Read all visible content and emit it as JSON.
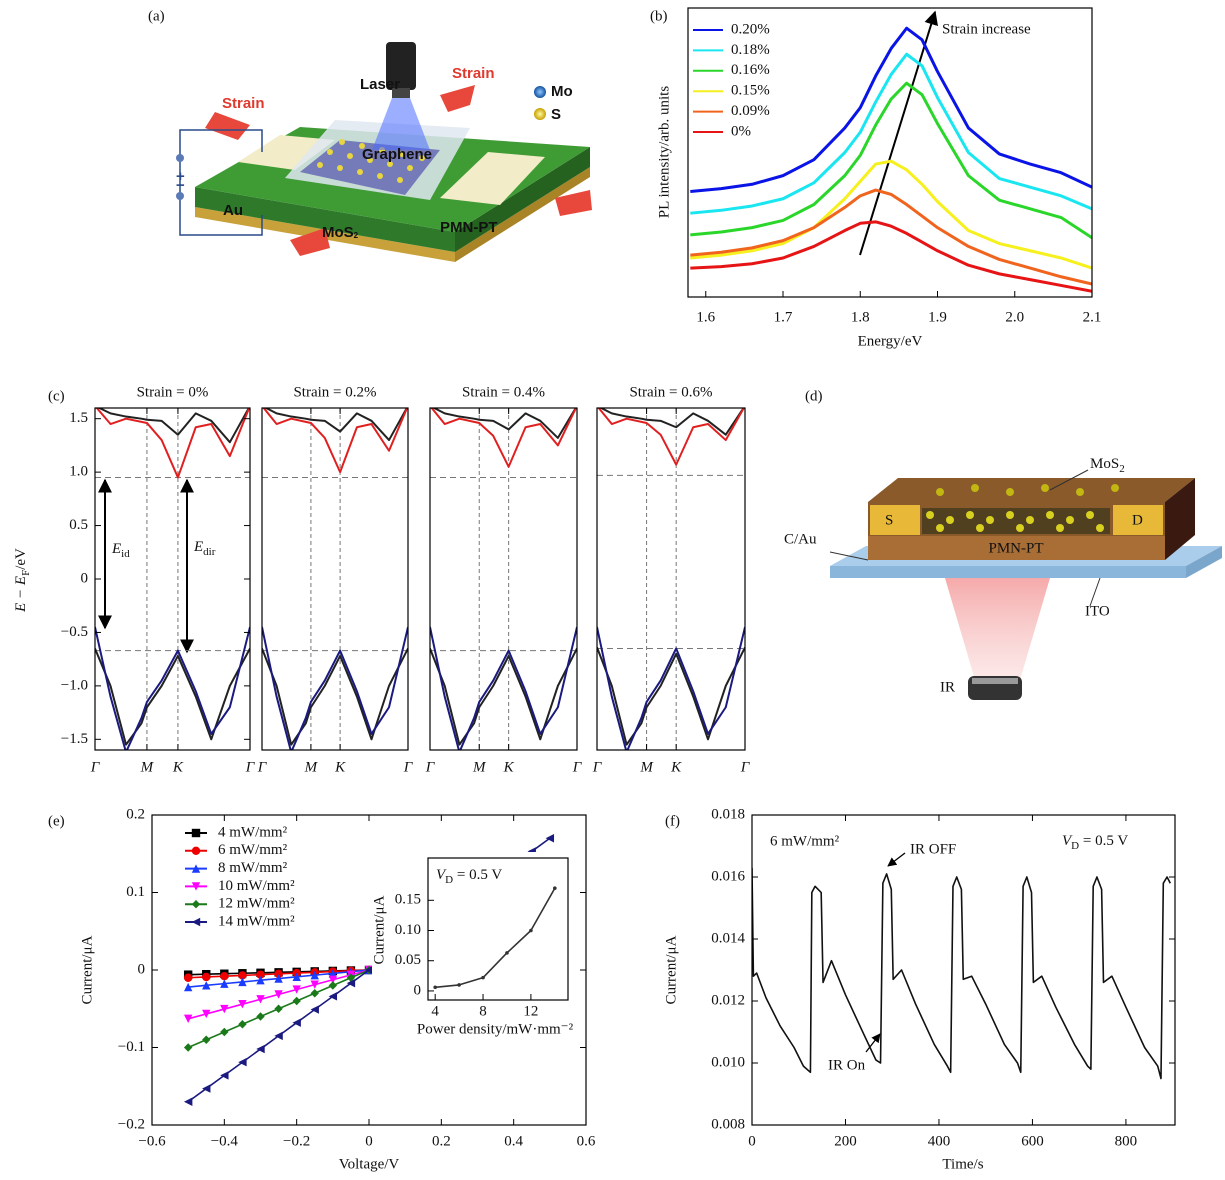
{
  "panel_labels": [
    "(a)",
    "(b)",
    "(c)",
    "(d)",
    "(e)",
    "(f)"
  ],
  "diagram_a": {
    "laser": "Laser",
    "strain_left": "Strain",
    "strain_right": "Strain",
    "legend": [
      "Mo",
      "S"
    ],
    "graphene": "Graphene",
    "electrode": "Au",
    "channel": {
      "text": "MoS",
      "sub": "2"
    },
    "substrate": "PMN-PT",
    "plus": "+",
    "minus": "−"
  },
  "diagram_d": {
    "channel": {
      "text": "MoS",
      "sub": "2"
    },
    "source": "S",
    "drain": "D",
    "bottom_electrode": "C/Au",
    "substrate": "PMN-PT",
    "top_layer": "ITO",
    "light": "IR"
  },
  "chart_data": [
    {
      "type": "line",
      "xlabel": "Energy/eV",
      "ylabel": "PL intensity/arb. units",
      "annotation": "Strain increase",
      "legend": "upper left",
      "mirror": false,
      "xlim": [
        1.577,
        2.1
      ],
      "ylim": [
        0,
        10
      ],
      "xticks": [
        1.6,
        1.7,
        1.8,
        1.9,
        {
          "value": 2.0,
          "label": "2.0"
        },
        2.1
      ],
      "x": [
        1.58,
        1.62,
        1.66,
        1.7,
        1.74,
        1.78,
        1.8,
        1.82,
        1.84,
        1.86,
        1.88,
        1.9,
        1.94,
        1.98,
        2.02,
        2.06,
        2.1
      ],
      "series": [
        {
          "name": "0.20%",
          "color": "#0a14e6",
          "values": [
            3.65,
            3.75,
            3.9,
            4.2,
            4.75,
            5.85,
            6.55,
            7.65,
            8.6,
            9.3,
            8.9,
            7.8,
            5.85,
            4.95,
            4.6,
            4.3,
            3.8
          ]
        },
        {
          "name": "0.18%",
          "color": "#19e6f0",
          "values": [
            2.9,
            3.0,
            3.15,
            3.4,
            3.95,
            5.0,
            5.7,
            6.75,
            7.7,
            8.4,
            8.0,
            6.9,
            5.0,
            4.1,
            3.8,
            3.5,
            3.05
          ]
        },
        {
          "name": "0.16%",
          "color": "#2bd62b",
          "values": [
            2.15,
            2.25,
            2.4,
            2.65,
            3.2,
            4.2,
            4.9,
            5.95,
            6.85,
            7.4,
            7.0,
            6.0,
            4.2,
            3.35,
            3.05,
            2.75,
            2.05
          ]
        },
        {
          "name": "0.15%",
          "color": "#f5f01e",
          "values": [
            1.35,
            1.45,
            1.6,
            1.85,
            2.4,
            3.4,
            4.0,
            4.6,
            4.7,
            4.4,
            3.9,
            3.3,
            2.3,
            1.85,
            1.6,
            1.35,
            1.0
          ]
        },
        {
          "name": "0.09%",
          "color": "#f0641e",
          "values": [
            1.45,
            1.55,
            1.7,
            1.95,
            2.4,
            3.1,
            3.5,
            3.7,
            3.55,
            3.2,
            2.8,
            2.4,
            1.75,
            1.3,
            1.0,
            0.7,
            0.45
          ]
        },
        {
          "name": "0%",
          "color": "#e61414",
          "values": [
            1.0,
            1.05,
            1.15,
            1.35,
            1.75,
            2.3,
            2.55,
            2.6,
            2.45,
            2.2,
            1.9,
            1.6,
            1.1,
            0.8,
            0.6,
            0.4,
            0.2
          ]
        }
      ]
    },
    {
      "type": "line",
      "title": "Strain = 0%",
      "ylabel": {
        "text": "E − E",
        "sub": "F",
        "rest": "/eV"
      },
      "xgrid": true,
      "mirror": true,
      "annotations": [
        {
          "text": "E",
          "sub": "id"
        },
        {
          "text": "E",
          "sub": "dir"
        }
      ],
      "xlim": [
        0,
        1
      ],
      "ylim": [
        -1.6,
        1.6
      ],
      "xticks": [
        {
          "value": 0,
          "label": "Γ"
        },
        {
          "value": 0.335,
          "label": "M"
        },
        {
          "value": 0.535,
          "label": "K"
        },
        {
          "value": 1,
          "label": "Γ"
        }
      ],
      "yticks": [
        {
          "value": -1.5,
          "label": "−1.5"
        },
        {
          "value": -1.0,
          "label": "−1.0"
        },
        {
          "value": -0.5,
          "label": "−0.5"
        },
        0,
        0.5,
        {
          "value": 1.0,
          "label": "1.0"
        },
        1.5
      ],
      "hlines": [
        0.95,
        -0.67
      ],
      "x": [
        0,
        0.1,
        0.2,
        0.3,
        0.335,
        0.43,
        0.535,
        0.65,
        0.75,
        0.87,
        1.0
      ],
      "series": [
        {
          "color": "#222222",
          "values": [
            1.62,
            1.55,
            1.52,
            1.5,
            1.49,
            1.48,
            1.35,
            1.55,
            1.48,
            1.28,
            1.62
          ]
        },
        {
          "color": "#e02020",
          "values": [
            1.62,
            1.45,
            1.5,
            1.47,
            1.46,
            1.3,
            0.95,
            1.42,
            1.45,
            1.15,
            1.62
          ]
        },
        {
          "color": "#222222",
          "values": [
            -0.65,
            -1.0,
            -1.55,
            -1.35,
            -1.2,
            -1.0,
            -0.72,
            -1.1,
            -1.5,
            -1.0,
            -0.65
          ]
        },
        {
          "color": "#1a1a80",
          "values": [
            -0.45,
            -1.1,
            -1.62,
            -1.3,
            -1.15,
            -0.95,
            -0.67,
            -1.05,
            -1.45,
            -1.2,
            -0.45
          ]
        }
      ]
    },
    {
      "type": "line",
      "title": "Strain = 0.2%",
      "xgrid": true,
      "mirror": true,
      "xlim": [
        0,
        1
      ],
      "ylim": [
        -1.6,
        1.6
      ],
      "xticks": [
        {
          "value": 0,
          "label": "Γ"
        },
        {
          "value": 0.335,
          "label": "M"
        },
        {
          "value": 0.535,
          "label": "K"
        },
        {
          "value": 1,
          "label": "Γ"
        }
      ],
      "hlines": [
        0.95,
        -0.67
      ],
      "x": [
        0,
        0.1,
        0.2,
        0.3,
        0.335,
        0.43,
        0.535,
        0.65,
        0.75,
        0.87,
        1.0
      ],
      "series": [
        {
          "color": "#222222",
          "values": [
            1.62,
            1.55,
            1.52,
            1.5,
            1.49,
            1.48,
            1.38,
            1.55,
            1.48,
            1.3,
            1.62
          ]
        },
        {
          "color": "#e02020",
          "values": [
            1.62,
            1.45,
            1.5,
            1.47,
            1.46,
            1.32,
            1.0,
            1.42,
            1.45,
            1.2,
            1.62
          ]
        },
        {
          "color": "#222222",
          "values": [
            -0.65,
            -1.0,
            -1.55,
            -1.35,
            -1.2,
            -1.0,
            -0.72,
            -1.1,
            -1.5,
            -1.0,
            -0.65
          ]
        },
        {
          "color": "#1a1a80",
          "values": [
            -0.45,
            -1.1,
            -1.62,
            -1.3,
            -1.15,
            -0.95,
            -0.67,
            -1.05,
            -1.45,
            -1.2,
            -0.45
          ]
        }
      ]
    },
    {
      "type": "line",
      "title": "Strain = 0.4%",
      "xgrid": true,
      "mirror": true,
      "xlim": [
        0,
        1
      ],
      "ylim": [
        -1.6,
        1.6
      ],
      "xticks": [
        {
          "value": 0,
          "label": "Γ"
        },
        {
          "value": 0.335,
          "label": "M"
        },
        {
          "value": 0.535,
          "label": "K"
        },
        {
          "value": 1,
          "label": "Γ"
        }
      ],
      "hlines": [
        0.95,
        -0.67
      ],
      "x": [
        0,
        0.1,
        0.2,
        0.3,
        0.335,
        0.43,
        0.535,
        0.65,
        0.75,
        0.87,
        1.0
      ],
      "series": [
        {
          "color": "#222222",
          "values": [
            1.62,
            1.55,
            1.52,
            1.5,
            1.49,
            1.48,
            1.4,
            1.55,
            1.48,
            1.32,
            1.62
          ]
        },
        {
          "color": "#e02020",
          "values": [
            1.62,
            1.45,
            1.5,
            1.47,
            1.46,
            1.34,
            1.05,
            1.42,
            1.45,
            1.25,
            1.62
          ]
        },
        {
          "color": "#222222",
          "values": [
            -0.65,
            -1.0,
            -1.55,
            -1.35,
            -1.2,
            -1.0,
            -0.72,
            -1.1,
            -1.5,
            -1.0,
            -0.65
          ]
        },
        {
          "color": "#1a1a80",
          "values": [
            -0.45,
            -1.1,
            -1.62,
            -1.3,
            -1.15,
            -0.95,
            -0.67,
            -1.05,
            -1.45,
            -1.2,
            -0.45
          ]
        }
      ]
    },
    {
      "type": "line",
      "title": "Strain = 0.6%",
      "xgrid": true,
      "mirror": true,
      "xlim": [
        0,
        1
      ],
      "ylim": [
        -1.6,
        1.6
      ],
      "xticks": [
        {
          "value": 0,
          "label": "Γ"
        },
        {
          "value": 0.335,
          "label": "M"
        },
        {
          "value": 0.535,
          "label": "K"
        },
        {
          "value": 1,
          "label": "Γ"
        }
      ],
      "hlines": [
        0.97,
        -0.65
      ],
      "x": [
        0,
        0.1,
        0.2,
        0.3,
        0.335,
        0.43,
        0.535,
        0.65,
        0.75,
        0.87,
        1.0
      ],
      "series": [
        {
          "color": "#222222",
          "values": [
            1.62,
            1.55,
            1.52,
            1.5,
            1.49,
            1.48,
            1.42,
            1.55,
            1.48,
            1.35,
            1.62
          ]
        },
        {
          "color": "#e02020",
          "values": [
            1.62,
            1.45,
            1.5,
            1.47,
            1.46,
            1.35,
            1.07,
            1.42,
            1.45,
            1.3,
            1.62
          ]
        },
        {
          "color": "#222222",
          "values": [
            -0.64,
            -1.0,
            -1.55,
            -1.35,
            -1.2,
            -1.0,
            -0.7,
            -1.1,
            -1.5,
            -1.0,
            -0.64
          ]
        },
        {
          "color": "#1a1a80",
          "values": [
            -0.45,
            -1.1,
            -1.62,
            -1.3,
            -1.15,
            -0.95,
            -0.65,
            -1.05,
            -1.45,
            -1.2,
            -0.45
          ]
        }
      ]
    },
    {
      "type": "line",
      "xlabel": "Voltage/V",
      "ylabel": "Current/μA",
      "legend": "upper left",
      "mirror": true,
      "xlim": [
        -0.6,
        0.6
      ],
      "ylim": [
        -0.2,
        0.2
      ],
      "xticks": [
        {
          "value": -0.6,
          "label": "−0.6"
        },
        {
          "value": -0.4,
          "label": "−0.4"
        },
        {
          "value": -0.2,
          "label": "−0.2"
        },
        0,
        0.2,
        0.4,
        0.6
      ],
      "yticks": [
        {
          "value": -0.2,
          "label": "−0.2"
        },
        {
          "value": -0.1,
          "label": "−0.1"
        },
        0,
        0.1,
        0.2
      ],
      "x": [
        -0.5,
        -0.45,
        -0.4,
        -0.35,
        -0.3,
        -0.25,
        -0.2,
        -0.15,
        -0.1,
        -0.05,
        0,
        0.05,
        0.1,
        0.15,
        0.2,
        0.25,
        0.3,
        0.35,
        0.4,
        0.45,
        0.5
      ],
      "series": [
        {
          "name": "4 mW/mm²",
          "color": "#000000",
          "marker": "square",
          "values": [
            -0.006,
            -0.0054,
            -0.0048,
            -0.0042,
            -0.0036,
            -0.003,
            -0.0024,
            -0.0018,
            -0.0012,
            -0.0006,
            0,
            0.0006,
            0.0012,
            0.0018,
            0.0024,
            0.003,
            0.0036,
            0.0042,
            0.0048,
            0.0054,
            0.006
          ]
        },
        {
          "name": "6 mW/mm²",
          "color": "#ee0000",
          "marker": "circle",
          "values": [
            -0.01,
            -0.009,
            -0.008,
            -0.007,
            -0.006,
            -0.005,
            -0.004,
            -0.003,
            -0.002,
            -0.001,
            0,
            0.001,
            0.002,
            0.003,
            0.004,
            0.005,
            0.006,
            0.007,
            0.008,
            0.009,
            0.01
          ]
        },
        {
          "name": "8 mW/mm²",
          "color": "#1a3cff",
          "marker": "triangle-up",
          "values": [
            -0.022,
            -0.0198,
            -0.0176,
            -0.0154,
            -0.0132,
            -0.011,
            -0.0088,
            -0.0066,
            -0.0044,
            -0.0022,
            0,
            0.0022,
            0.0044,
            0.0066,
            0.0088,
            0.011,
            0.0132,
            0.0154,
            0.0176,
            0.0198,
            0.022
          ]
        },
        {
          "name": "10 mW/mm²",
          "color": "#ff00ff",
          "marker": "triangle-down",
          "values": [
            -0.063,
            -0.0567,
            -0.0504,
            -0.0441,
            -0.0378,
            -0.0315,
            -0.0252,
            -0.0189,
            -0.0126,
            -0.0063,
            0,
            0.0063,
            0.0126,
            0.0189,
            0.0252,
            0.0315,
            0.0378,
            0.0441,
            0.0504,
            0.0567,
            0.063
          ]
        },
        {
          "name": "12 mW/mm²",
          "color": "#1a7a1a",
          "marker": "diamond",
          "values": [
            -0.1,
            -0.09,
            -0.08,
            -0.07,
            -0.06,
            -0.05,
            -0.04,
            -0.03,
            -0.02,
            -0.01,
            0,
            0.01,
            0.02,
            0.03,
            0.04,
            0.05,
            0.06,
            0.07,
            0.08,
            0.09,
            0.1
          ]
        },
        {
          "name": "14 mW/mm²",
          "color": "#1a1a80",
          "marker": "triangle-left",
          "values": [
            -0.17,
            -0.153,
            -0.136,
            -0.119,
            -0.102,
            -0.085,
            -0.068,
            -0.051,
            -0.034,
            -0.017,
            0,
            0.017,
            0.034,
            0.051,
            0.068,
            0.085,
            0.102,
            0.119,
            0.136,
            0.153,
            0.17
          ]
        }
      ]
    },
    {
      "type": "line",
      "xlabel": "Power density/mW·mm⁻²",
      "ylabel": "Current/μA",
      "annotation": {
        "text": "V",
        "sub": "D",
        "rest": " = 0.5 V"
      },
      "mirror": false,
      "xlim": [
        3.4,
        15.1
      ],
      "ylim": [
        -0.015,
        0.22
      ],
      "xticks": [
        4,
        8,
        12
      ],
      "yticks": [
        0,
        0.05,
        {
          "value": 0.1,
          "label": "0.10"
        },
        0.15
      ],
      "x": [
        4,
        6,
        8,
        10,
        12,
        14
      ],
      "series": [
        {
          "color": "#333333",
          "marker": "dot",
          "values": [
            0.006,
            0.01,
            0.022,
            0.063,
            0.1,
            0.17
          ]
        }
      ]
    },
    {
      "type": "line",
      "xlabel": "Time/s",
      "ylabel": "Current/μA",
      "mirror": true,
      "annotations": [
        "6 mW/mm²",
        "IR OFF",
        "IR On",
        {
          "text": "V",
          "sub": "D",
          "rest": " = 0.5 V"
        }
      ],
      "xlim": [
        0,
        905
      ],
      "ylim": [
        0.008,
        0.018
      ],
      "xticks": [
        0,
        200,
        400,
        600,
        800
      ],
      "yticks": [
        0.008,
        {
          "value": 0.01,
          "label": "0.010"
        },
        0.012,
        0.014,
        0.016,
        0.018
      ],
      "x": [
        0,
        3,
        10,
        30,
        60,
        90,
        110,
        125,
        128,
        135,
        148,
        152,
        170,
        200,
        240,
        265,
        275,
        280,
        288,
        298,
        302,
        320,
        350,
        390,
        418,
        425,
        430,
        438,
        448,
        452,
        470,
        500,
        540,
        568,
        575,
        580,
        588,
        598,
        602,
        620,
        650,
        690,
        718,
        725,
        730,
        738,
        748,
        752,
        770,
        800,
        840,
        868,
        875,
        880,
        888,
        895
      ],
      "series": [
        {
          "color": "#111111",
          "values": [
            0.0163,
            0.0128,
            0.0129,
            0.0121,
            0.0112,
            0.0105,
            0.0099,
            0.0097,
            0.0155,
            0.0157,
            0.0155,
            0.0126,
            0.0133,
            0.0122,
            0.0109,
            0.0101,
            0.01,
            0.0158,
            0.0161,
            0.0156,
            0.0127,
            0.013,
            0.0119,
            0.0106,
            0.0099,
            0.0097,
            0.0157,
            0.016,
            0.0156,
            0.0127,
            0.0128,
            0.0119,
            0.0106,
            0.01,
            0.0097,
            0.0157,
            0.016,
            0.0155,
            0.0126,
            0.0128,
            0.0118,
            0.0106,
            0.0099,
            0.0098,
            0.0157,
            0.016,
            0.0156,
            0.0126,
            0.0128,
            0.0118,
            0.0105,
            0.0099,
            0.0095,
            0.0158,
            0.016,
            0.0158
          ]
        }
      ]
    }
  ]
}
